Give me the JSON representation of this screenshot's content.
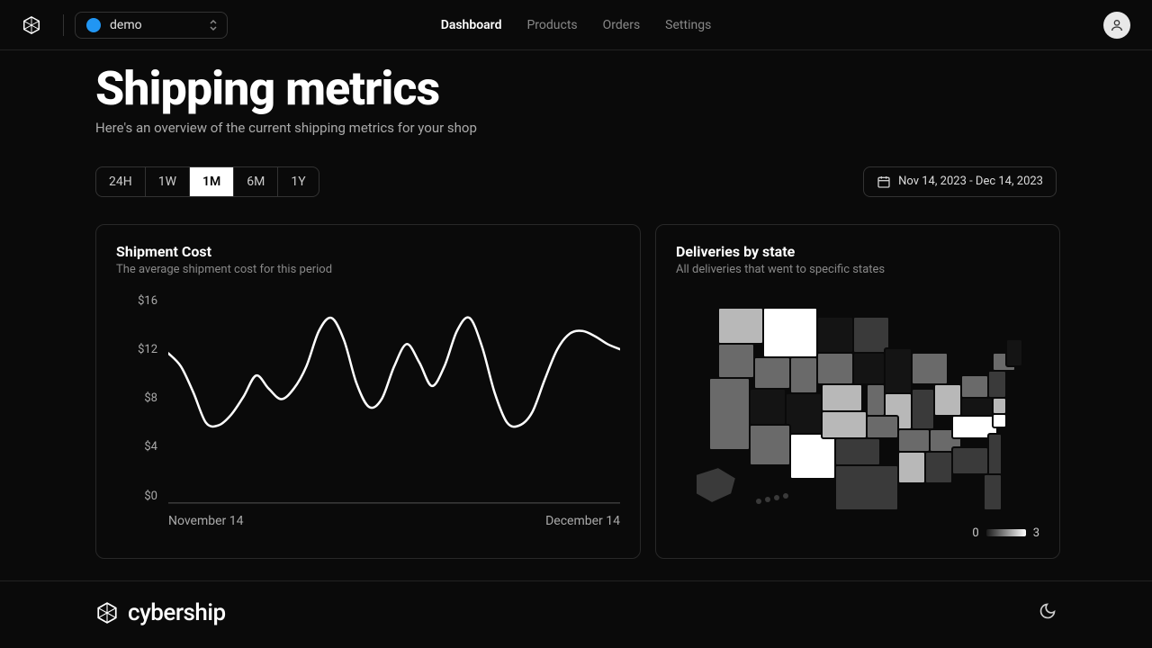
{
  "header": {
    "workspace_name": "demo",
    "workspace_color": "#2196f3",
    "nav": [
      "Dashboard",
      "Products",
      "Orders",
      "Settings"
    ],
    "nav_active_index": 0
  },
  "page": {
    "title": "Shipping metrics",
    "subtitle": "Here's an overview of the current shipping metrics for your shop"
  },
  "range": {
    "options": [
      "24H",
      "1W",
      "1M",
      "6M",
      "1Y"
    ],
    "active_index": 2,
    "date_label": "Nov 14, 2023 - Dec 14, 2023"
  },
  "shipment_chart": {
    "title": "Shipment Cost",
    "subtitle": "The average shipment cost for this period",
    "type": "line",
    "y_labels": [
      "$16",
      "$12",
      "$8",
      "$4",
      "$0"
    ],
    "y_max": 16,
    "y_min": 0,
    "x_labels": [
      "November 14",
      "December 14"
    ],
    "line_color": "#ffffff",
    "line_width": 2.5,
    "axis_color": "#888888",
    "background_color": "#0a0a0a",
    "points_y": [
      11.5,
      10.5,
      8.5,
      6.2,
      6.0,
      6.8,
      8.2,
      9.8,
      8.8,
      8.0,
      8.8,
      10.5,
      13.2,
      14.2,
      12.5,
      9.2,
      7.4,
      8.0,
      10.5,
      12.2,
      10.8,
      9.0,
      10.5,
      13.2,
      14.2,
      12.0,
      8.5,
      6.2,
      6.0,
      7.0,
      9.5,
      11.8,
      13.0,
      13.2,
      12.8,
      12.2,
      11.8
    ]
  },
  "deliveries": {
    "title": "Deliveries by state",
    "subtitle": "All deliveries that went to specific states",
    "legend_min": "0",
    "legend_max": "3",
    "colors": {
      "c0": "#141414",
      "c1": "#3a3a3a",
      "c2": "#6a6a6a",
      "c3": "#b8b8b8",
      "c4": "#ffffff"
    }
  },
  "footer": {
    "brand": "cybership"
  }
}
